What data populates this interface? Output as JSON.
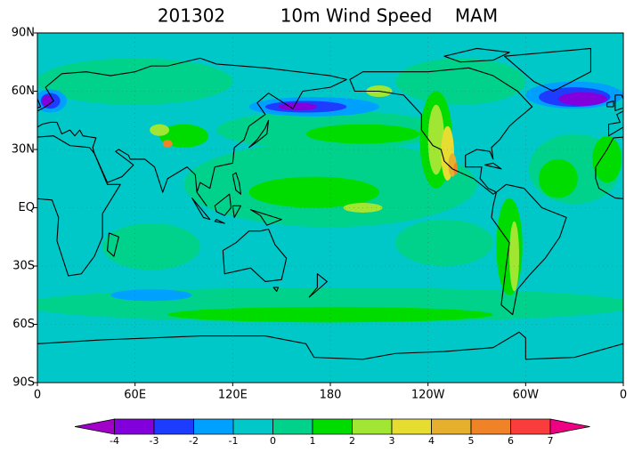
{
  "title": [
    "201302",
    "10m Wind Speed",
    "MAM"
  ],
  "lat_labels": [
    "90N",
    "60N",
    "30N",
    "EQ",
    "30S",
    "60S",
    "90S"
  ],
  "lon_labels": [
    "0",
    "60E",
    "120E",
    "180",
    "120W",
    "60W",
    "0"
  ],
  "colorbar": {
    "labels": [
      -4,
      -3,
      -2,
      -1,
      0,
      1,
      2,
      3,
      4,
      5,
      6,
      7
    ],
    "colors": [
      "#a000c8",
      "#8200dc",
      "#1e3cff",
      "#00a0ff",
      "#00c8c8",
      "#00d28c",
      "#00dc00",
      "#a0e632",
      "#e6dc32",
      "#e6af2d",
      "#f08228",
      "#fa3c3c",
      "#f00082"
    ]
  }
}
